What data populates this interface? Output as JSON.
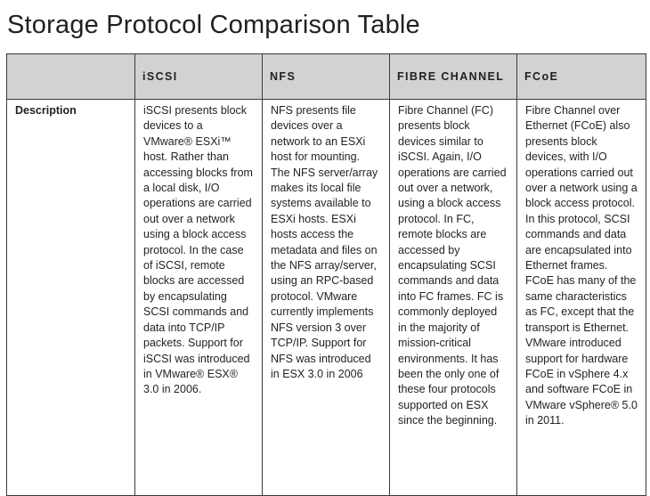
{
  "title": "Storage Protocol Comparison Table",
  "table": {
    "headers": [
      "",
      "iSCSI",
      "NFS",
      "FIBRE CHANNEL",
      "FCoE"
    ],
    "rows": [
      {
        "label": "Description",
        "cells": [
          "iSCSI presents block devices to a VMware® ESXi™ host. Rather than accessing blocks from a local disk, I/O operations are carried out over a network using a block access protocol. In the case of iSCSI, remote blocks are accessed by encapsulating SCSI commands and data into TCP/IP packets. Support for iSCSI was introduced in VMware® ESX® 3.0 in 2006.",
          "NFS presents file devices over a network to an ESXi host for mounting. The NFS server/array makes its local file systems available to ESXi hosts. ESXi hosts access the metadata and files on the NFS array/server, using an RPC-based protocol. VMware currently implements NFS version 3 over TCP/IP. Support for NFS was introduced in ESX 3.0 in 2006",
          "Fibre Channel (FC) presents block devices similar to iSCSI. Again, I/O operations are carried out over a network, using a block access protocol. In FC, remote blocks are accessed by encapsulating SCSI commands and data into FC frames. FC is commonly deployed in the majority of mission-critical environments. It has been the only one of these four protocols supported on ESX since the beginning.",
          "Fibre Channel over Ethernet (FCoE) also presents block devices, with I/O operations carried out over a network using a block access protocol. In this protocol, SCSI commands and data are encapsulated into Ethernet frames. FCoE has many of the same characteristics as FC, except that the transport is Ethernet. VMware introduced support for hardware FCoE in vSphere 4.x and software FCoE in VMware vSphere® 5.0 in 2011."
        ]
      }
    ]
  }
}
